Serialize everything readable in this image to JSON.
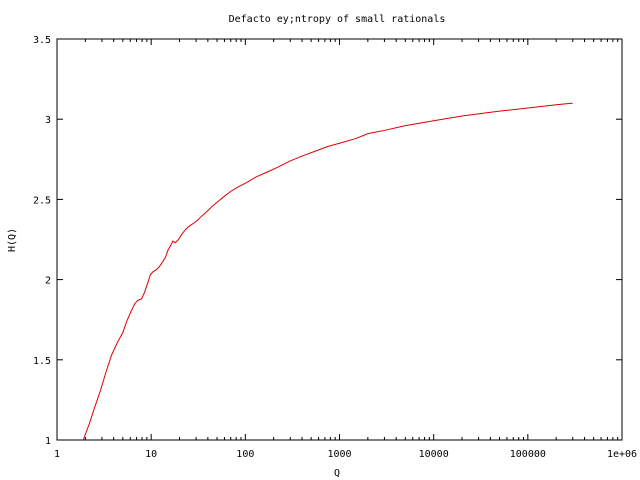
{
  "chart_data": {
    "type": "line",
    "title": "Defacto ey;ntropy of small rationals",
    "xlabel": "Q",
    "ylabel": "H(Q)",
    "x_scale": "log",
    "xlim": [
      1,
      1000000
    ],
    "ylim": [
      1,
      3.5
    ],
    "x_ticks": [
      {
        "value": 1,
        "label": "1"
      },
      {
        "value": 10,
        "label": "10"
      },
      {
        "value": 100,
        "label": "100"
      },
      {
        "value": 1000,
        "label": "1000"
      },
      {
        "value": 10000,
        "label": "10000"
      },
      {
        "value": 100000,
        "label": "100000"
      },
      {
        "value": 1000000,
        "label": "1e+06"
      }
    ],
    "y_ticks": [
      {
        "value": 1,
        "label": "1"
      },
      {
        "value": 1.5,
        "label": "1.5"
      },
      {
        "value": 2,
        "label": "2"
      },
      {
        "value": 2.5,
        "label": "2.5"
      },
      {
        "value": 3,
        "label": "3"
      },
      {
        "value": 3.5,
        "label": "3.5"
      }
    ],
    "grid": false,
    "series": [
      {
        "color": "#dd0000",
        "points": [
          [
            1.9,
            1.0
          ],
          [
            2.2,
            1.1
          ],
          [
            2.5,
            1.2
          ],
          [
            2.9,
            1.31
          ],
          [
            3.3,
            1.42
          ],
          [
            3.8,
            1.53
          ],
          [
            4.4,
            1.61
          ],
          [
            5.0,
            1.67
          ],
          [
            5.5,
            1.74
          ],
          [
            6.1,
            1.8
          ],
          [
            6.7,
            1.85
          ],
          [
            7.2,
            1.87
          ],
          [
            7.9,
            1.88
          ],
          [
            8.5,
            1.92
          ],
          [
            9.2,
            1.98
          ],
          [
            9.8,
            2.03
          ],
          [
            10.5,
            2.05
          ],
          [
            11.3,
            2.06
          ],
          [
            12.2,
            2.08
          ],
          [
            13.2,
            2.11
          ],
          [
            14.2,
            2.14
          ],
          [
            15.0,
            2.18
          ],
          [
            16.0,
            2.21
          ],
          [
            17.0,
            2.24
          ],
          [
            18.0,
            2.23
          ],
          [
            19.5,
            2.25
          ],
          [
            21.0,
            2.28
          ],
          [
            23.0,
            2.31
          ],
          [
            25.0,
            2.33
          ],
          [
            28.0,
            2.35
          ],
          [
            31.0,
            2.37
          ],
          [
            35.0,
            2.4
          ],
          [
            40.0,
            2.43
          ],
          [
            45.0,
            2.46
          ],
          [
            52.0,
            2.49
          ],
          [
            60.0,
            2.52
          ],
          [
            70.0,
            2.55
          ],
          [
            85.0,
            2.58
          ],
          [
            100.0,
            2.6
          ],
          [
            130.0,
            2.64
          ],
          [
            170.0,
            2.67
          ],
          [
            220.0,
            2.7
          ],
          [
            300.0,
            2.74
          ],
          [
            400.0,
            2.77
          ],
          [
            550.0,
            2.8
          ],
          [
            750.0,
            2.83
          ],
          [
            1000.0,
            2.85
          ],
          [
            1500.0,
            2.88
          ],
          [
            2000.0,
            2.91
          ],
          [
            3000.0,
            2.93
          ],
          [
            5000.0,
            2.96
          ],
          [
            10000.0,
            2.99
          ],
          [
            20000.0,
            3.02
          ],
          [
            50000.0,
            3.05
          ],
          [
            100000.0,
            3.07
          ],
          [
            200000.0,
            3.09
          ],
          [
            300000.0,
            3.1
          ]
        ]
      }
    ]
  }
}
